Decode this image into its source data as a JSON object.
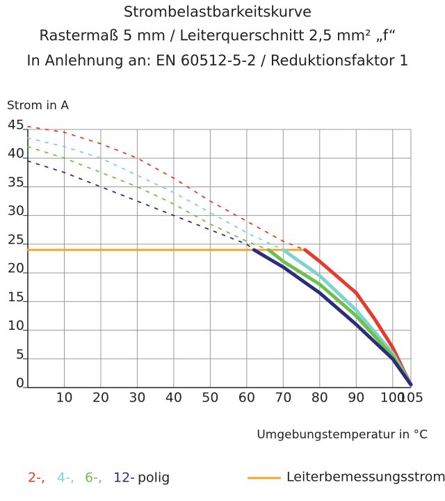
{
  "chart_data": {
    "type": "line",
    "title": [
      "Strombelastbarkeitskurve",
      "Rastermaß 5 mm / Leiterquerschnitt 2,5 mm² „f“",
      "In Anlehnung an: EN 60512-5-2 / Reduktionsfaktor 1"
    ],
    "y_label": "Strom in A",
    "x_label": "Umgebungstemperatur in °C",
    "xlim": [
      0,
      105
    ],
    "xticks": [
      10,
      20,
      30,
      40,
      50,
      60,
      70,
      80,
      90,
      100,
      105
    ],
    "ylim": [
      0,
      45
    ],
    "yticks": [
      0,
      5,
      10,
      15,
      20,
      25,
      30,
      35,
      40,
      45
    ],
    "grid": true,
    "legend_suffix": "polig",
    "series": [
      {
        "name": "2-,",
        "color": "#e8392a",
        "dashed": {
          "x": [
            0,
            10,
            20,
            30,
            40,
            50,
            60,
            70,
            76
          ],
          "values": [
            45.5,
            44.5,
            42.5,
            40,
            36.5,
            32.5,
            29,
            25.5,
            24
          ]
        },
        "solid": {
          "x": [
            76,
            80,
            90,
            95,
            100,
            103,
            105
          ],
          "values": [
            24,
            22,
            16.5,
            12,
            7,
            3,
            0.5
          ]
        }
      },
      {
        "name": "4-,",
        "color": "#7fd3d0",
        "dashed": {
          "x": [
            0,
            10,
            20,
            30,
            40,
            50,
            60,
            70
          ],
          "values": [
            43.5,
            42,
            40,
            37,
            34,
            30.5,
            27,
            24
          ]
        },
        "solid": {
          "x": [
            70,
            80,
            90,
            100,
            105
          ],
          "values": [
            24,
            19.5,
            13.5,
            6,
            0.5
          ]
        }
      },
      {
        "name": "6-,",
        "color": "#6cc24a",
        "dashed": {
          "x": [
            0,
            10,
            20,
            30,
            40,
            50,
            60,
            66
          ],
          "values": [
            42,
            40,
            37.5,
            35,
            32,
            28.5,
            25.5,
            24
          ]
        },
        "solid": {
          "x": [
            66,
            70,
            80,
            90,
            100,
            105
          ],
          "values": [
            24,
            22,
            18,
            12.5,
            5.5,
            0.5
          ]
        }
      },
      {
        "name": "12-",
        "color": "#2b2e7c",
        "dashed": {
          "x": [
            0,
            10,
            20,
            30,
            40,
            50,
            60,
            62
          ],
          "values": [
            39.5,
            37.5,
            35,
            32.5,
            30,
            27.5,
            25,
            24
          ]
        },
        "solid": {
          "x": [
            62,
            70,
            80,
            90,
            100,
            105
          ],
          "values": [
            24,
            21,
            16.5,
            11,
            5,
            0.5
          ]
        }
      }
    ],
    "limit_line": {
      "name": "Leiterbemessungsstrom",
      "color": "#f5a623",
      "x": [
        0,
        76
      ],
      "values": [
        24,
        24
      ]
    }
  }
}
